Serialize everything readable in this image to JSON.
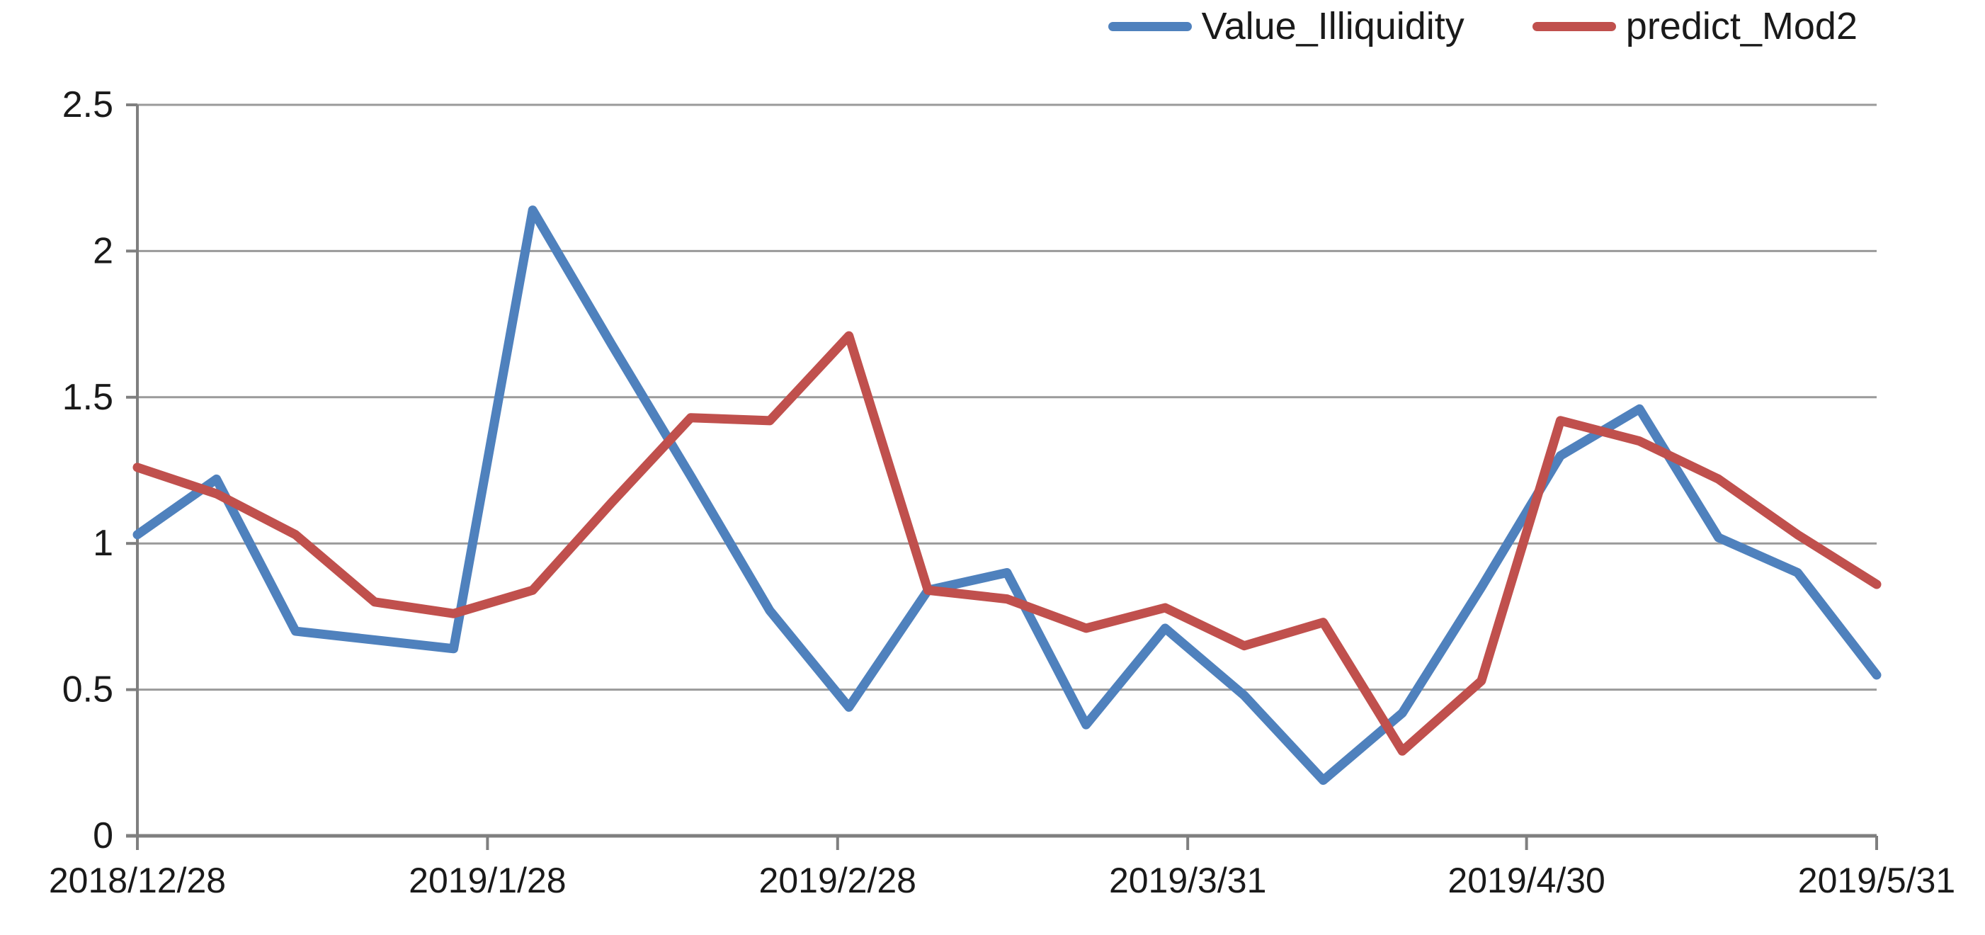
{
  "chart_data": {
    "type": "line",
    "title": "",
    "xlabel": "",
    "ylabel": "",
    "grid": "horizontal",
    "legend_position": "top-right",
    "ylim": [
      0,
      2.5
    ],
    "y_tick_labels": [
      "0",
      "0.5",
      "1",
      "1.5",
      "2",
      "2.5"
    ],
    "y_tick_values": [
      0,
      0.5,
      1,
      1.5,
      2,
      2.5
    ],
    "x_tick_labels": [
      "2018/12/28",
      "2019/1/28",
      "2019/2/28",
      "2019/3/31",
      "2019/4/30",
      "2019/5/31"
    ],
    "x_tick_day_offsets": [
      0,
      31,
      62,
      93,
      123,
      154
    ],
    "total_days": 154,
    "point_day_interval": 7,
    "series": [
      {
        "name": "Value_Illiquidity",
        "color": "#4F81BD",
        "values": [
          1.03,
          1.22,
          0.7,
          0.67,
          0.64,
          2.14,
          1.68,
          1.23,
          0.77,
          0.44,
          0.84,
          0.9,
          0.38,
          0.71,
          0.48,
          0.19,
          0.42,
          0.85,
          1.3,
          1.46,
          1.02,
          0.9,
          0.55
        ]
      },
      {
        "name": "predict_Mod2",
        "color": "#C0504D",
        "values": [
          1.26,
          1.17,
          1.03,
          0.8,
          0.76,
          0.84,
          1.14,
          1.43,
          1.42,
          1.71,
          0.84,
          0.81,
          0.71,
          0.78,
          0.65,
          0.73,
          0.29,
          0.53,
          1.42,
          1.35,
          1.22,
          1.03,
          0.86
        ]
      }
    ],
    "colors": {
      "gridline": "#9a9a9a",
      "axis": "#7f7f7f",
      "tick_text": "#1a1a1a",
      "background": "#ffffff"
    }
  },
  "legend": {
    "items": [
      {
        "label": "Value_Illiquidity",
        "color": "#4F81BD"
      },
      {
        "label": "predict_Mod2",
        "color": "#C0504D"
      }
    ]
  }
}
